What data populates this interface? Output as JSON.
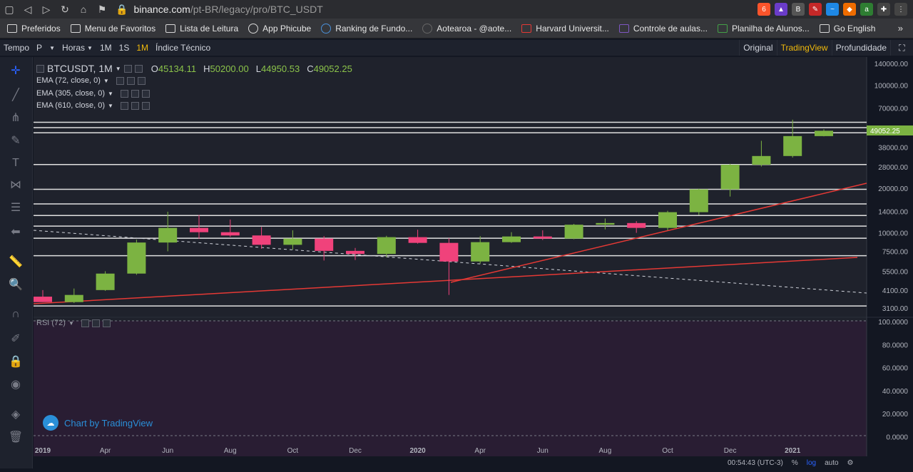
{
  "browser": {
    "url_host": "binance.com",
    "url_path": "/pt-BR/legacy/pro/BTC_USDT",
    "ext_badge": "6"
  },
  "bookmarks": [
    {
      "label": "Preferidos",
      "icon": "folder-icon"
    },
    {
      "label": "Menu de Favoritos",
      "icon": "folder-icon"
    },
    {
      "label": "Lista de Leitura",
      "icon": "folder-icon"
    },
    {
      "label": "App Phicube",
      "icon": "globe-icon"
    },
    {
      "label": "Ranking de Fundo...",
      "icon": "logo-icon"
    },
    {
      "label": "Aotearoa - @aote...",
      "icon": "logo-icon"
    },
    {
      "label": "Harvard Universit...",
      "icon": "edx-icon"
    },
    {
      "label": "Controle de aulas...",
      "icon": "form-icon"
    },
    {
      "label": "Planilha de Alunos...",
      "icon": "sheet-icon"
    },
    {
      "label": "Go English",
      "icon": "folder-icon"
    }
  ],
  "toolbar": {
    "tempo": "Tempo",
    "p": "P",
    "horas": "Horas",
    "i1M": "1M",
    "i1S": "1S",
    "i1Mo": "1M",
    "indicator": "Índice Técnico",
    "original": "Original",
    "tradingview": "TradingView",
    "profundidade": "Profundidade"
  },
  "legend": {
    "symbol": "BTCUSDT, 1M",
    "o_label": "O",
    "o": "45134.11",
    "h_label": "H",
    "h": "50200.00",
    "l_label": "L",
    "l": "44950.53",
    "c_label": "C",
    "c": "49052.25",
    "ema1": "EMA (72, close, 0)",
    "ema2": "EMA (305, close, 0)",
    "ema3": "EMA (610, close, 0)",
    "rsi": "RSI (72)"
  },
  "attribution": "Chart by TradingView",
  "footer": {
    "time": "00:54:43 (UTC-3)",
    "pct": "%",
    "log": "log",
    "auto": "auto"
  },
  "colors": {
    "up": "#7cb342",
    "down": "#f0427b",
    "accent": "#f0b90b",
    "trendline": "#e53935"
  },
  "chart_data": {
    "type": "candlestick",
    "scale": "log",
    "price_ticks": [
      "140000.00",
      "100000.00",
      "70000.00",
      "50000.00",
      "38000.00",
      "28000.00",
      "20000.00",
      "14000.00",
      "10000.00",
      "7500.00",
      "5500.00",
      "4100.00",
      "3100.00"
    ],
    "last_price_label": "49052.25",
    "rsi_ticks": [
      "100.0000",
      "80.0000",
      "60.0000",
      "40.0000",
      "20.0000",
      "0.0000"
    ],
    "x_labels": [
      "2019",
      "Apr",
      "Jun",
      "Aug",
      "Oct",
      "Dec",
      "2020",
      "Apr",
      "Jun",
      "Aug",
      "Oct",
      "Dec",
      "2021"
    ],
    "candles": [
      {
        "o": 3700,
        "h": 4100,
        "l": 3400,
        "c": 3400
      },
      {
        "o": 3400,
        "h": 4200,
        "l": 3350,
        "c": 3800
      },
      {
        "o": 4100,
        "h": 5500,
        "l": 4050,
        "c": 5300
      },
      {
        "o": 5300,
        "h": 9000,
        "l": 5200,
        "c": 8600
      },
      {
        "o": 8600,
        "h": 13900,
        "l": 7500,
        "c": 10800
      },
      {
        "o": 10800,
        "h": 13200,
        "l": 9100,
        "c": 10100
      },
      {
        "o": 10100,
        "h": 12300,
        "l": 9400,
        "c": 9600
      },
      {
        "o": 9600,
        "h": 10950,
        "l": 7800,
        "c": 8300
      },
      {
        "o": 8300,
        "h": 10400,
        "l": 7700,
        "c": 9150
      },
      {
        "o": 9150,
        "h": 9500,
        "l": 6500,
        "c": 7550
      },
      {
        "o": 7550,
        "h": 7900,
        "l": 6550,
        "c": 7200
      },
      {
        "o": 7200,
        "h": 9550,
        "l": 6850,
        "c": 9350
      },
      {
        "o": 9350,
        "h": 10500,
        "l": 8450,
        "c": 8550
      },
      {
        "o": 8550,
        "h": 9200,
        "l": 3800,
        "c": 6400
      },
      {
        "o": 6400,
        "h": 9500,
        "l": 6200,
        "c": 8650
      },
      {
        "o": 8650,
        "h": 10100,
        "l": 8550,
        "c": 9450
      },
      {
        "o": 9450,
        "h": 10400,
        "l": 8950,
        "c": 9150
      },
      {
        "o": 9150,
        "h": 11500,
        "l": 9050,
        "c": 11350
      },
      {
        "o": 11350,
        "h": 12500,
        "l": 10550,
        "c": 11650
      },
      {
        "o": 11650,
        "h": 12000,
        "l": 10000,
        "c": 10800
      },
      {
        "o": 10800,
        "h": 14100,
        "l": 10400,
        "c": 13800
      },
      {
        "o": 13800,
        "h": 19900,
        "l": 13200,
        "c": 19700
      },
      {
        "o": 19700,
        "h": 29300,
        "l": 17600,
        "c": 28900
      },
      {
        "o": 28900,
        "h": 41950,
        "l": 28100,
        "c": 33100
      },
      {
        "o": 33100,
        "h": 58300,
        "l": 32300,
        "c": 45150
      },
      {
        "o": 45134.11,
        "h": 50200,
        "l": 44950.53,
        "c": 49052.25
      }
    ],
    "horizontal_levels": [
      56000,
      51500,
      47500,
      29000,
      19700,
      15700,
      13100,
      11100,
      9200,
      7000,
      3200
    ]
  }
}
